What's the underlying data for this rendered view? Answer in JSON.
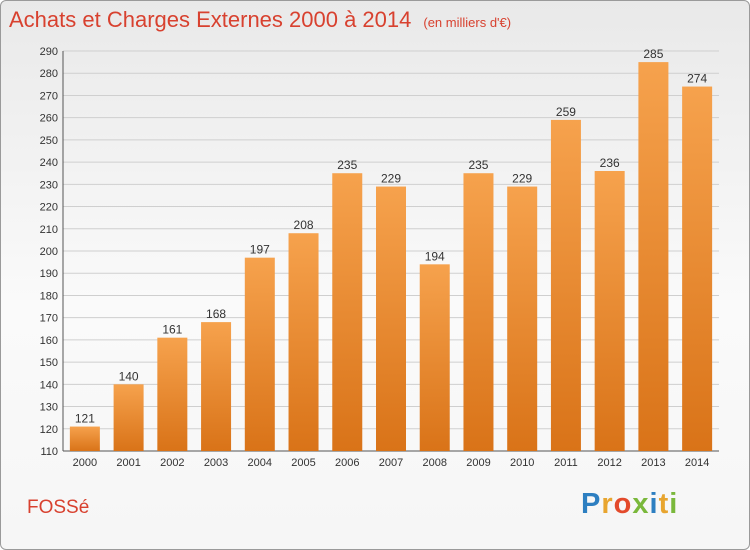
{
  "header": {
    "title": "Achats et Charges Externes 2000 à 2014",
    "unit": "(en milliers d'€)"
  },
  "footer": {
    "town": "FOSSé",
    "logo": {
      "letters": [
        "P",
        "r",
        "o",
        "x",
        "i",
        "t",
        "i"
      ],
      "colors": [
        "#2d7fc1",
        "#e8a52f",
        "#e34a2b",
        "#7ab83b",
        "#2d7fc1",
        "#e8a52f",
        "#7ab83b"
      ]
    }
  },
  "colors": {
    "bar_top": "#f6a24d",
    "bar_bottom": "#d97318",
    "grid": "#cfcfcf"
  },
  "chart_data": {
    "type": "bar",
    "categories": [
      "2000",
      "2001",
      "2002",
      "2003",
      "2004",
      "2005",
      "2006",
      "2007",
      "2008",
      "2009",
      "2010",
      "2011",
      "2012",
      "2013",
      "2014"
    ],
    "values": [
      121,
      140,
      161,
      168,
      197,
      208,
      235,
      229,
      194,
      235,
      229,
      259,
      236,
      285,
      274
    ],
    "title": "Achats et Charges Externes 2000 à 2014",
    "xlabel": "",
    "ylabel": "",
    "ylim": [
      110,
      290
    ],
    "ytick_step": 10,
    "grid": true,
    "data_labels": true
  }
}
